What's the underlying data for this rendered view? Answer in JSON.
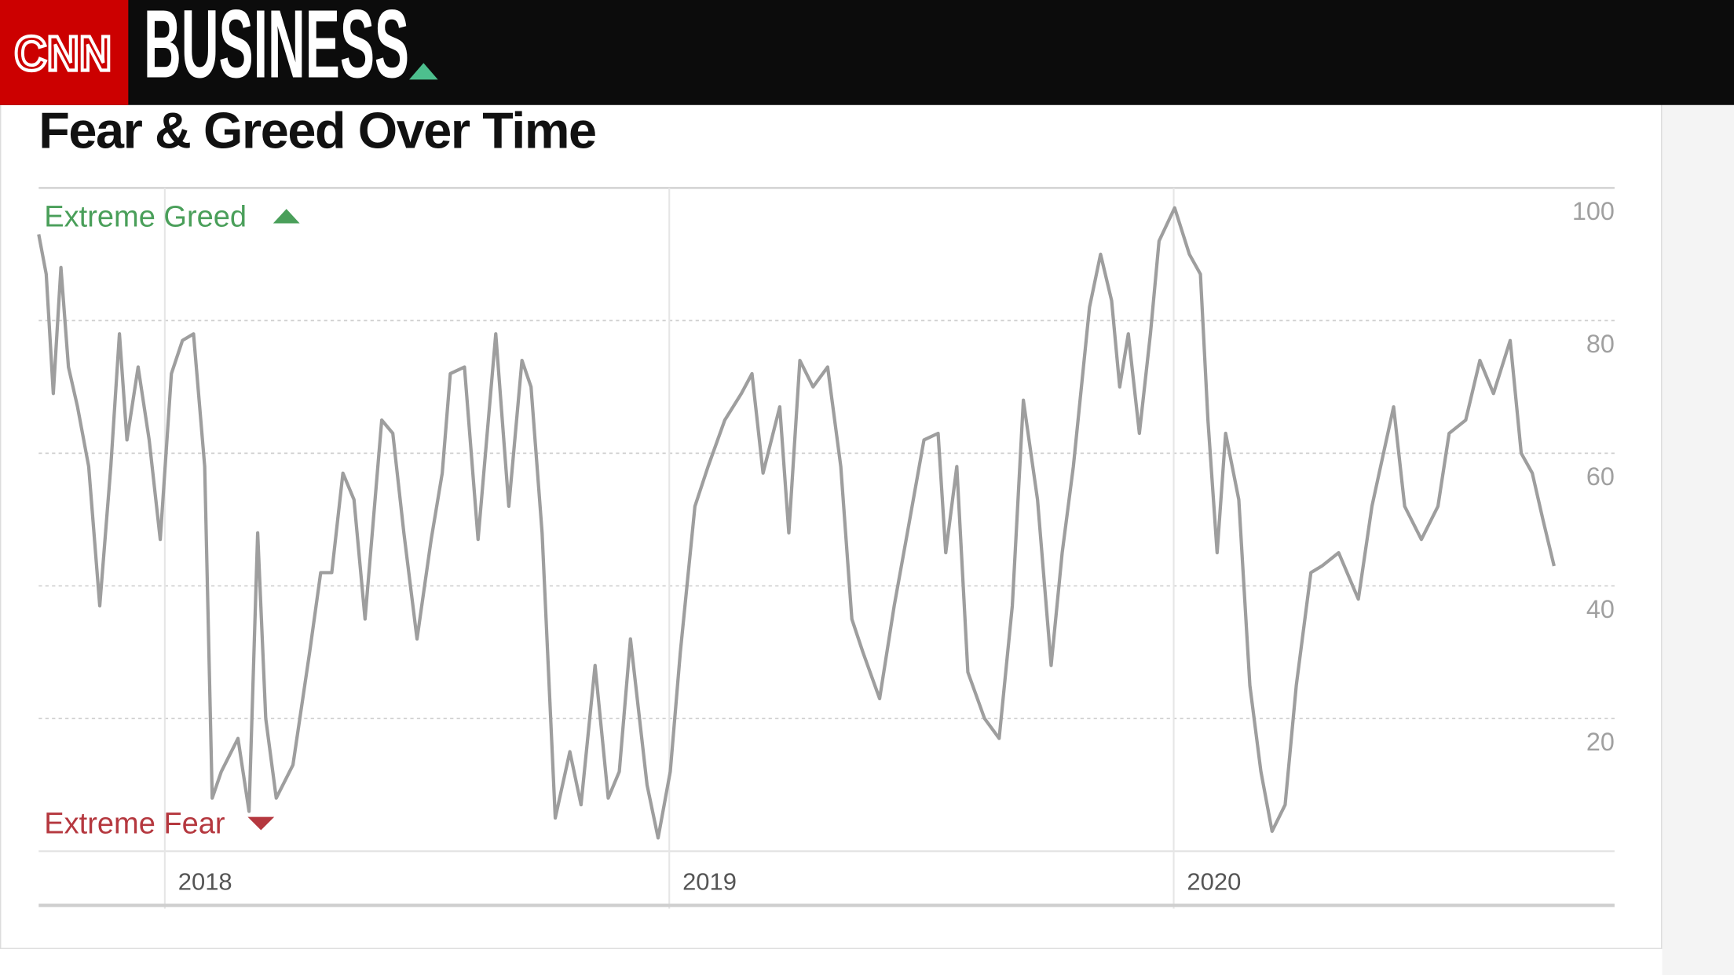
{
  "header": {
    "logo": "CNN",
    "section": "BUSINESS"
  },
  "chart_data": {
    "type": "line",
    "title": "Fear & Greed Over Time",
    "greed_label": "Extreme Greed",
    "fear_label": "Extreme Fear",
    "color": "#9e9e9e",
    "grid": true,
    "xlim": [
      2017.75,
      2020.874
    ],
    "xticks": [
      2018,
      2019,
      2020
    ],
    "ylim": [
      0,
      100
    ],
    "yticks": [
      20,
      40,
      60,
      80,
      100
    ],
    "x": [
      2017.75,
      2017.765,
      2017.779,
      2017.794,
      2017.809,
      2017.827,
      2017.849,
      2017.871,
      2017.893,
      2017.91,
      2017.925,
      2017.947,
      2017.969,
      2017.991,
      2018.013,
      2018.035,
      2018.057,
      2018.079,
      2018.094,
      2018.112,
      2018.145,
      2018.167,
      2018.184,
      2018.2,
      2018.221,
      2018.254,
      2018.287,
      2018.309,
      2018.331,
      2018.353,
      2018.375,
      2018.397,
      2018.43,
      2018.452,
      2018.474,
      2018.5,
      2018.528,
      2018.55,
      2018.566,
      2018.594,
      2018.621,
      2018.656,
      2018.682,
      2018.708,
      2018.726,
      2018.748,
      2018.774,
      2018.803,
      2018.825,
      2018.853,
      2018.879,
      2018.901,
      2018.923,
      2018.956,
      2018.978,
      2019.002,
      2019.022,
      2019.051,
      2019.077,
      2019.11,
      2019.143,
      2019.164,
      2019.186,
      2019.219,
      2019.237,
      2019.259,
      2019.285,
      2019.314,
      2019.34,
      2019.362,
      2019.384,
      2019.417,
      2019.446,
      2019.472,
      2019.505,
      2019.533,
      2019.548,
      2019.57,
      2019.592,
      2019.625,
      2019.654,
      2019.68,
      2019.702,
      2019.73,
      2019.757,
      2019.779,
      2019.801,
      2019.833,
      2019.855,
      2019.877,
      2019.893,
      2019.91,
      2019.932,
      2019.954,
      2019.971,
      2020.002,
      2020.031,
      2020.053,
      2020.068,
      2020.086,
      2020.103,
      2020.129,
      2020.151,
      2020.173,
      2020.195,
      2020.221,
      2020.243,
      2020.272,
      2020.294,
      2020.327,
      2020.366,
      2020.393,
      2020.436,
      2020.458,
      2020.491,
      2020.524,
      2020.546,
      2020.579,
      2020.607,
      2020.634,
      2020.667,
      2020.689,
      2020.711,
      2020.732,
      2020.754
    ],
    "values": [
      93,
      87,
      69,
      88,
      73,
      67,
      58,
      37,
      58,
      78,
      62,
      73,
      62,
      47,
      72,
      77,
      78,
      58,
      8,
      12,
      17,
      6,
      48,
      20,
      8,
      13,
      30,
      42,
      42,
      57,
      53,
      35,
      65,
      63,
      48,
      32,
      47,
      57,
      72,
      73,
      47,
      78,
      52,
      74,
      70,
      48,
      5,
      15,
      7,
      28,
      8,
      12,
      32,
      10,
      2,
      12,
      30,
      52,
      58,
      65,
      69,
      72,
      57,
      67,
      48,
      74,
      70,
      73,
      58,
      35,
      30,
      23,
      37,
      48,
      62,
      63,
      45,
      58,
      27,
      20,
      17,
      37,
      68,
      53,
      28,
      45,
      58,
      82,
      90,
      83,
      70,
      78,
      63,
      78,
      92,
      97,
      90,
      87,
      65,
      45,
      63,
      53,
      25,
      12,
      3,
      7,
      25,
      42,
      43,
      45,
      38,
      52,
      67,
      52,
      47,
      52,
      63,
      65,
      74,
      69,
      77,
      60,
      57,
      50,
      43
    ]
  }
}
